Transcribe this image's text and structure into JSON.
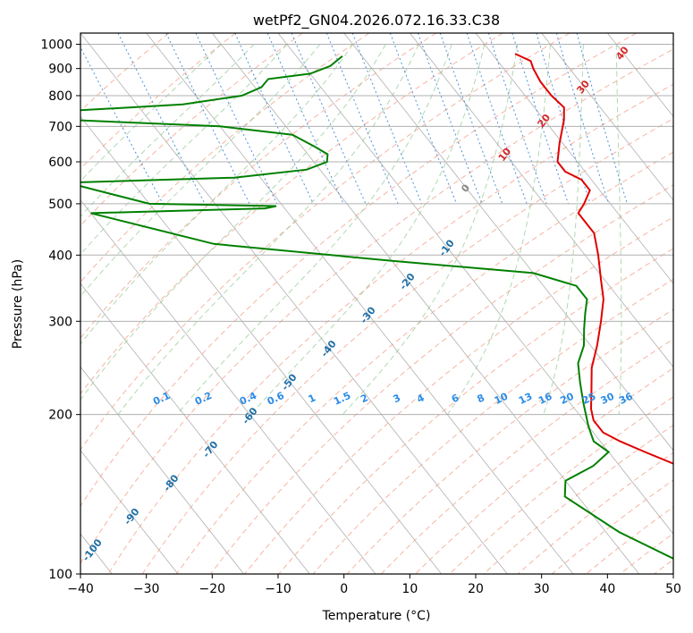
{
  "chart_data": {
    "type": "line",
    "subtype": "skew-t log-p diagram",
    "title": "wetPf2_GN04.2026.072.16.33.C38",
    "xlabel": "Temperature (°C)",
    "ylabel": "Pressure (hPa)",
    "xlim": [
      -40,
      50
    ],
    "ylim": [
      1050,
      100
    ],
    "yscale": "log",
    "x_ticks": [
      -40,
      -30,
      -20,
      -10,
      0,
      10,
      20,
      30,
      40,
      50
    ],
    "x_tick_labels": [
      "−40",
      "−30",
      "−20",
      "−10",
      "0",
      "10",
      "20",
      "30",
      "40",
      "50"
    ],
    "y_ticks": [
      1000,
      900,
      800,
      700,
      600,
      500,
      400,
      300,
      200,
      100
    ],
    "y_tick_labels": [
      "1000",
      "900",
      "800",
      "700",
      "600",
      "500",
      "400",
      "300",
      "200",
      "100"
    ],
    "grid": true,
    "background_lines": {
      "isotherm_color": "#b0b0b0",
      "dry_adiabat_color": "#f4a28c",
      "moist_adiabat_color": "#90c890",
      "mixing_ratio_color": "#1f77d4",
      "isotherm_labels_color": "#1f6fa6",
      "mixing_ratio_values": [
        0.1,
        0.2,
        0.4,
        0.6,
        1,
        1.5,
        2,
        3,
        4,
        6,
        8,
        10,
        13,
        16,
        20,
        25,
        30,
        36
      ],
      "mixing_ratio_labels": [
        "0.1",
        "0.2",
        "0.4",
        "0.6",
        "1",
        "1.5",
        "2",
        "3",
        "4",
        "6",
        "8",
        "10",
        "13",
        "16",
        "20",
        "25",
        "30",
        "36"
      ],
      "upper_isotherm_values": [
        -100,
        -90,
        -80,
        -70,
        -60,
        -50,
        -40,
        -30,
        -20,
        -10
      ],
      "upper_isotherm_labels": [
        "-100",
        "-90",
        "-80",
        "-70",
        "-60",
        "-50",
        "-40",
        "-30",
        "-20",
        "-10"
      ],
      "lower_isotherm_values": [
        0,
        10,
        20,
        30,
        40
      ],
      "lower_isotherm_labels": [
        "0",
        "10",
        "20",
        "30",
        "40"
      ]
    },
    "series": [
      {
        "color": "#e00000",
        "points": [
          [
            960,
            23.5
          ],
          [
            930,
            25
          ],
          [
            900,
            24.5
          ],
          [
            850,
            24
          ],
          [
            800,
            24
          ],
          [
            760,
            24.5
          ],
          [
            720,
            23
          ],
          [
            650,
            19.5
          ],
          [
            600,
            17
          ],
          [
            575,
            17
          ],
          [
            555,
            18.5
          ],
          [
            530,
            18.5
          ],
          [
            500,
            16
          ],
          [
            480,
            14
          ],
          [
            440,
            14
          ],
          [
            400,
            12
          ],
          [
            360,
            9.5
          ],
          [
            330,
            7.5
          ],
          [
            300,
            4.5
          ],
          [
            270,
            1
          ],
          [
            245,
            -2.5
          ],
          [
            220,
            -5.5
          ],
          [
            205,
            -7.5
          ],
          [
            195,
            -8.5
          ],
          [
            185,
            -8.5
          ],
          [
            178,
            -7
          ],
          [
            170,
            -4.5
          ],
          [
            160,
            -1
          ],
          [
            150,
            1
          ],
          [
            140,
            4
          ],
          [
            130,
            6
          ],
          [
            120,
            8.5
          ],
          [
            115,
            9.5
          ],
          [
            108,
            10
          ],
          [
            100,
            11
          ]
        ]
      },
      {
        "color": "#008000",
        "points": [
          [
            950,
            -3
          ],
          [
            930,
            -4.5
          ],
          [
            910,
            -6
          ],
          [
            880,
            -10
          ],
          [
            860,
            -17
          ],
          [
            830,
            -19
          ],
          [
            800,
            -23
          ],
          [
            770,
            -33
          ],
          [
            750,
            -50
          ],
          [
            720,
            -52
          ],
          [
            700,
            -30
          ],
          [
            675,
            -20
          ],
          [
            640,
            -18
          ],
          [
            620,
            -17
          ],
          [
            600,
            -18
          ],
          [
            580,
            -22
          ],
          [
            560,
            -34
          ],
          [
            548,
            -60
          ],
          [
            500,
            -50
          ],
          [
            495,
            -31
          ],
          [
            490,
            -33
          ],
          [
            480,
            -60
          ],
          [
            420,
            -45
          ],
          [
            390,
            -20
          ],
          [
            370,
            0
          ],
          [
            350,
            5
          ],
          [
            330,
            5
          ],
          [
            310,
            3
          ],
          [
            290,
            1
          ],
          [
            270,
            -1
          ],
          [
            250,
            -4
          ],
          [
            230,
            -6
          ],
          [
            210,
            -8
          ],
          [
            190,
            -10
          ],
          [
            178,
            -11
          ],
          [
            170,
            -10
          ],
          [
            160,
            -14
          ],
          [
            150,
            -20
          ],
          [
            140,
            -22
          ],
          [
            120,
            -18
          ],
          [
            100,
            -10
          ]
        ]
      }
    ]
  }
}
